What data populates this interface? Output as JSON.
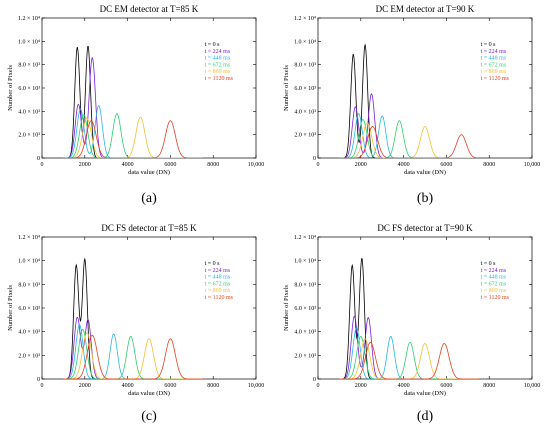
{
  "figure": {
    "panels_count": 4
  },
  "chart_data": [
    {
      "type": "line",
      "panel_label": "(a)",
      "title": "DC EM detector at T=85 K",
      "xlabel": "data value (DN)",
      "ylabel": "Number of Pixels",
      "xlim": [
        0,
        10000
      ],
      "ylim": [
        0,
        12000.0
      ],
      "xticks": [
        0,
        2000,
        4000,
        6000,
        8000,
        10000
      ],
      "xtick_labels": [
        "0",
        "2000",
        "4000",
        "6000",
        "8000",
        "10,000"
      ],
      "yticks": [
        0,
        2000,
        4000,
        6000,
        8000,
        10000,
        12000
      ],
      "ytick_labels": [
        "0",
        "2.0 × 10³",
        "4.0 × 10³",
        "6.0 × 10³",
        "8.0 × 10³",
        "1.0 × 10⁴",
        "1.2 × 10⁴"
      ],
      "grid": false,
      "legend_position": "upper-right",
      "series": [
        {
          "name": "t = 0 s",
          "color": "#000000",
          "peaks": [
            [
              1650,
              9500,
              120
            ],
            [
              2150,
              9600,
              120
            ]
          ]
        },
        {
          "name": "t = 224 ms",
          "color": "#7a1fd6",
          "peaks": [
            [
              1700,
              4600,
              150
            ],
            [
              2350,
              8600,
              150
            ]
          ]
        },
        {
          "name": "t = 448 ms",
          "color": "#29b6e0",
          "peaks": [
            [
              1800,
              4200,
              170
            ],
            [
              2650,
              4500,
              170
            ]
          ]
        },
        {
          "name": "t = 672 ms",
          "color": "#2ecc71",
          "peaks": [
            [
              1950,
              3700,
              190
            ],
            [
              3500,
              3800,
              190
            ]
          ]
        },
        {
          "name": "t = 869 ms",
          "color": "#f2c12e",
          "peaks": [
            [
              2100,
              3400,
              210
            ],
            [
              4600,
              3500,
              210
            ]
          ]
        },
        {
          "name": "t = 1120 ms",
          "color": "#e83e1f",
          "peaks": [
            [
              2300,
              3200,
              230
            ],
            [
              6000,
              3200,
              230
            ]
          ]
        }
      ]
    },
    {
      "type": "line",
      "panel_label": "(b)",
      "title": "DC EM detector at T=90 K",
      "xlabel": "data value (DN)",
      "ylabel": "Number of Pixels",
      "xlim": [
        0,
        10000
      ],
      "ylim": [
        0,
        12000.0
      ],
      "xticks": [
        0,
        2000,
        4000,
        6000,
        8000,
        10000
      ],
      "xtick_labels": [
        "0",
        "2000",
        "4000",
        "6000",
        "8000",
        "10,000"
      ],
      "yticks": [
        0,
        2000,
        4000,
        6000,
        8000,
        10000,
        12000
      ],
      "ytick_labels": [
        "0",
        "2.0 × 10³",
        "4.0 × 10³",
        "6.0 × 10³",
        "8.0 × 10³",
        "1.0 × 10⁴",
        "1.2 × 10⁴"
      ],
      "grid": false,
      "legend_position": "upper-right",
      "series": [
        {
          "name": "t = 0 s",
          "color": "#000000",
          "peaks": [
            [
              1650,
              8900,
              120
            ],
            [
              2200,
              9700,
              120
            ]
          ]
        },
        {
          "name": "t = 224 ms",
          "color": "#7a1fd6",
          "peaks": [
            [
              1750,
              4400,
              150
            ],
            [
              2500,
              5500,
              150
            ]
          ]
        },
        {
          "name": "t = 448 ms",
          "color": "#29b6e0",
          "peaks": [
            [
              1900,
              3800,
              170
            ],
            [
              3000,
              3600,
              170
            ]
          ]
        },
        {
          "name": "t = 672 ms",
          "color": "#2ecc71",
          "peaks": [
            [
              2100,
              3300,
              190
            ],
            [
              3800,
              3200,
              190
            ]
          ]
        },
        {
          "name": "t = 869 ms",
          "color": "#f2c12e",
          "peaks": [
            [
              2300,
              3000,
              210
            ],
            [
              5000,
              2700,
              210
            ]
          ]
        },
        {
          "name": "t = 1120 ms",
          "color": "#e83e1f",
          "peaks": [
            [
              2550,
              2700,
              230
            ],
            [
              6700,
              2000,
              230
            ]
          ]
        }
      ]
    },
    {
      "type": "line",
      "panel_label": "(c)",
      "title": "DC FS detector at T=85 K",
      "xlabel": "data value (DN)",
      "ylabel": "Number of Pixels",
      "xlim": [
        0,
        10000
      ],
      "ylim": [
        0,
        12000.0
      ],
      "xticks": [
        0,
        2000,
        4000,
        6000,
        8000,
        10000
      ],
      "xtick_labels": [
        "0",
        "2000",
        "4000",
        "6000",
        "8000",
        "10,000"
      ],
      "yticks": [
        0,
        2000,
        4000,
        6000,
        8000,
        10000,
        12000
      ],
      "ytick_labels": [
        "0",
        "2.0 × 10³",
        "4.0 × 10³",
        "6.0 × 10³",
        "8.0 × 10³",
        "1.0 × 10⁴",
        "1.2 × 10⁴"
      ],
      "grid": false,
      "legend_position": "upper-right",
      "series": [
        {
          "name": "t = 0 s",
          "color": "#000000",
          "peaks": [
            [
              1600,
              9600,
              120
            ],
            [
              2000,
              10100,
              120
            ]
          ]
        },
        {
          "name": "t = 224 ms",
          "color": "#7a1fd6",
          "peaks": [
            [
              1650,
              5200,
              150
            ],
            [
              2150,
              5000,
              150
            ]
          ]
        },
        {
          "name": "t = 448 ms",
          "color": "#29b6e0",
          "peaks": [
            [
              1750,
              4600,
              170
            ],
            [
              3350,
              3800,
              170
            ]
          ]
        },
        {
          "name": "t = 672 ms",
          "color": "#2ecc71",
          "peaks": [
            [
              1900,
              4200,
              190
            ],
            [
              4150,
              3600,
              190
            ]
          ]
        },
        {
          "name": "t = 869 ms",
          "color": "#f2c12e",
          "peaks": [
            [
              2100,
              3900,
              210
            ],
            [
              5000,
              3400,
              210
            ]
          ]
        },
        {
          "name": "t = 1120 ms",
          "color": "#e83e1f",
          "peaks": [
            [
              2350,
              3700,
              230
            ],
            [
              6000,
              3400,
              230
            ]
          ]
        }
      ]
    },
    {
      "type": "line",
      "panel_label": "(d)",
      "title": "DC FS detector at T=90 K",
      "xlabel": "data value (DN)",
      "ylabel": "Number of Pixels",
      "xlim": [
        0,
        10000
      ],
      "ylim": [
        0,
        12000.0
      ],
      "xticks": [
        0,
        2000,
        4000,
        6000,
        8000,
        10000
      ],
      "xtick_labels": [
        "0",
        "2000",
        "4000",
        "6000",
        "8000",
        "10,000"
      ],
      "yticks": [
        0,
        2000,
        4000,
        6000,
        8000,
        10000,
        12000
      ],
      "ytick_labels": [
        "0",
        "2.0 × 10³",
        "4.0 × 10³",
        "6.0 × 10³",
        "8.0 × 10³",
        "1.0 × 10⁴",
        "1.2 × 10⁴"
      ],
      "grid": false,
      "legend_position": "upper-right",
      "series": [
        {
          "name": "t = 0 s",
          "color": "#000000",
          "peaks": [
            [
              1600,
              9600,
              120
            ],
            [
              2050,
              10200,
              120
            ]
          ]
        },
        {
          "name": "t = 224 ms",
          "color": "#7a1fd6",
          "peaks": [
            [
              1700,
              5300,
              150
            ],
            [
              2350,
              5200,
              150
            ]
          ]
        },
        {
          "name": "t = 448 ms",
          "color": "#29b6e0",
          "peaks": [
            [
              1800,
              4300,
              170
            ],
            [
              3400,
              3600,
              170
            ]
          ]
        },
        {
          "name": "t = 672 ms",
          "color": "#2ecc71",
          "peaks": [
            [
              2000,
              3600,
              190
            ],
            [
              4300,
              3100,
              190
            ]
          ]
        },
        {
          "name": "t = 869 ms",
          "color": "#f2c12e",
          "peaks": [
            [
              2200,
              3400,
              210
            ],
            [
              5000,
              3000,
              210
            ]
          ]
        },
        {
          "name": "t = 1120 ms",
          "color": "#e83e1f",
          "peaks": [
            [
              2450,
              3100,
              230
            ],
            [
              5900,
              3000,
              230
            ]
          ]
        }
      ]
    }
  ]
}
